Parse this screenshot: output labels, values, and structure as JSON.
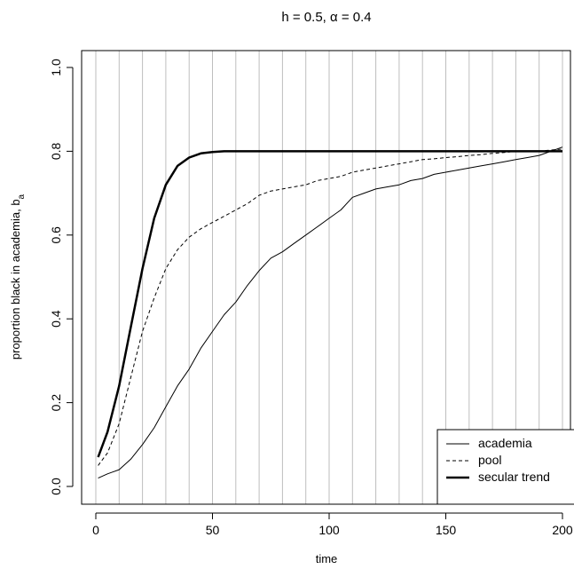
{
  "chart_data": {
    "type": "line",
    "title": "h = 0.5, α = 0.4",
    "xlabel": "time",
    "ylabel": "proportion black in academia, b",
    "ylabel_sub": "a",
    "xlim": [
      0,
      200
    ],
    "ylim": [
      0,
      1
    ],
    "x_ticks": [
      0,
      50,
      100,
      150,
      200
    ],
    "y_ticks": [
      0.0,
      0.2,
      0.4,
      0.6,
      0.8,
      1.0
    ],
    "y_tick_labels": [
      "0.0",
      "0.2",
      "0.4",
      "0.6",
      "0.8",
      "1.0"
    ],
    "vertical_grid_x": [
      0,
      10,
      20,
      30,
      40,
      50,
      60,
      70,
      80,
      90,
      100,
      110,
      120,
      130,
      140,
      150,
      160,
      170,
      180,
      190,
      200
    ],
    "legend_position": "bottom-right",
    "series": [
      {
        "name": "academia",
        "style": "solid-thin",
        "x": [
          1,
          5,
          10,
          15,
          20,
          25,
          30,
          35,
          40,
          45,
          50,
          55,
          60,
          65,
          70,
          75,
          80,
          85,
          90,
          95,
          100,
          105,
          110,
          115,
          120,
          125,
          130,
          135,
          140,
          145,
          150,
          155,
          160,
          165,
          170,
          175,
          180,
          185,
          190,
          195,
          200
        ],
        "y": [
          0.02,
          0.03,
          0.04,
          0.065,
          0.1,
          0.14,
          0.19,
          0.24,
          0.28,
          0.33,
          0.37,
          0.41,
          0.44,
          0.48,
          0.515,
          0.545,
          0.56,
          0.58,
          0.6,
          0.62,
          0.64,
          0.66,
          0.69,
          0.7,
          0.71,
          0.715,
          0.72,
          0.73,
          0.735,
          0.745,
          0.75,
          0.755,
          0.76,
          0.765,
          0.77,
          0.775,
          0.78,
          0.785,
          0.79,
          0.8,
          0.81
        ]
      },
      {
        "name": "pool",
        "style": "dashed",
        "x": [
          1,
          5,
          10,
          15,
          20,
          25,
          30,
          35,
          40,
          45,
          50,
          55,
          60,
          65,
          70,
          75,
          80,
          85,
          90,
          95,
          100,
          105,
          110,
          115,
          120,
          125,
          130,
          135,
          140,
          145,
          150,
          155,
          160,
          165,
          170,
          175,
          180,
          185,
          190,
          195,
          200
        ],
        "y": [
          0.05,
          0.08,
          0.15,
          0.26,
          0.37,
          0.45,
          0.52,
          0.565,
          0.595,
          0.615,
          0.63,
          0.645,
          0.66,
          0.675,
          0.695,
          0.705,
          0.71,
          0.715,
          0.72,
          0.73,
          0.735,
          0.74,
          0.75,
          0.755,
          0.76,
          0.765,
          0.77,
          0.775,
          0.78,
          0.782,
          0.785,
          0.787,
          0.79,
          0.792,
          0.795,
          0.797,
          0.8,
          0.8,
          0.8,
          0.803,
          0.805
        ]
      },
      {
        "name": "secular trend",
        "style": "solid-thick",
        "x": [
          1,
          5,
          10,
          15,
          20,
          25,
          30,
          35,
          40,
          45,
          50,
          55,
          60,
          70,
          80,
          90,
          100,
          120,
          140,
          160,
          180,
          200
        ],
        "y": [
          0.07,
          0.13,
          0.24,
          0.38,
          0.52,
          0.64,
          0.72,
          0.765,
          0.785,
          0.795,
          0.798,
          0.8,
          0.8,
          0.8,
          0.8,
          0.8,
          0.8,
          0.8,
          0.8,
          0.8,
          0.8,
          0.8
        ]
      }
    ]
  }
}
